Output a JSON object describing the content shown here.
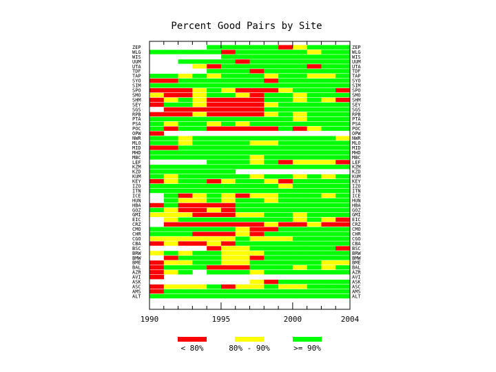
{
  "chart_data": {
    "type": "heatmap",
    "title": "Percent Good Pairs by Site",
    "xlabel": "",
    "ylabel": "",
    "x_ticks": [
      "1990",
      "1995",
      "2000",
      "2004"
    ],
    "x_tick_values": [
      1990,
      1995,
      2000,
      2004
    ],
    "xlim": [
      1990,
      2004
    ],
    "years": [
      1990,
      1991,
      1992,
      1993,
      1994,
      1995,
      1996,
      1997,
      1998,
      1999,
      2000,
      2001,
      2002,
      2003
    ],
    "colors": {
      "low": "#ff0000",
      "mid": "#ffff00",
      "high": "#00ff00",
      "none": "#ffffff"
    },
    "legend": [
      {
        "code": "R",
        "label": "< 80%"
      },
      {
        "code": "Y",
        "label": "80% - 90%"
      },
      {
        "code": "G",
        "label": ">= 90%"
      }
    ],
    "legend_position": "bottom",
    "value_codes": {
      "R": "< 80%",
      "Y": "80% - 90%",
      "G": ">= 90%",
      "-": "no data"
    },
    "sites": [
      "ZEP",
      "WLG",
      "WIS",
      "UUM",
      "UTA",
      "TDF",
      "TAP",
      "SYO",
      "SIM",
      "SPO",
      "SMO",
      "SHM",
      "SEY",
      "SGS",
      "RPB",
      "PTA",
      "PSA",
      "POC",
      "OPW",
      "NWR",
      "MLO",
      "MID",
      "MHD",
      "MBC",
      "LEF",
      "KZM",
      "KZD",
      "KUM",
      "KEY",
      "IZO",
      "ITN",
      "ICE",
      "HUN",
      "HBA",
      "GOZ",
      "GMI",
      "EIC",
      "CRZ",
      "CMO",
      "CHR",
      "CGO",
      "CBA",
      "BSC",
      "BRW",
      "BMW",
      "BME",
      "BAL",
      "AZR",
      "AVI",
      "ASK",
      "ASC",
      "AMS",
      "ALT"
    ],
    "rows": [
      "----GGGGGRYGGG",
      "GGGGGRGGGGGYGG",
      "-----GGGGGGGGG",
      "--GGGGRGGGGGGG",
      "---YRGGGGGGRGG",
      "----GGGRGGGGGG",
      "GGYGYGGGYGGYYG",
      "RRGGGGGGRGGGGG",
      "GGGGGGGGGGGGGG",
      "RRRYGYRRRYGGGR",
      "YRRYGGYRGGYGGG",
      "RYGYRRRRGGYGYR",
      "RGGYRRRRYGGGGG",
      "-RRRRRRRGGGGGG",
      "RRRYRRRRYGYGGG",
      "GGGGGGGGGGYGGG",
      "GYGGYGYGGGGGGG",
      "GRGGRRRRRGRYGG",
      "R-------------",
      "GGYGGGGGGGGGGY",
      "GGYGGGGYYGGGGG",
      "RRGGGGGGGGGGGG",
      "GGGGGGGGGGGGGG",
      "GGGGGGGYGGGGGG",
      "----GGGYGRYYYR",
      "GGGGGGGGGGGGGG",
      "GGGGGG--------",
      "GYGGGGGYGGYGYG",
      "RYGGRYGGYRGGGG",
      "GGGGGGGGGYGGGG",
      "GGGGGGGGGGGGGG",
      "-GRYGYRYYGGGYG",
      "-GYYGYGGYGGGGG",
      "RGRRRRGGGGGGGG",
      "GYRRYRGGGGGGGG",
      "YYYRRRYYGGYGGG",
      "-YGGGGGGGGYGYR",
      "-RRRRRRRYRRYRR",
      "GGGGGGYRRGGGGG",
      "GGGRRRYRGGGGGG",
      "YYYYYYGYYYGGGG",
      "RYRRYRGGGGGGGG",
      "----RYYGGGGGGR",
      "YGYGGYYYGGGGGG",
      "-RGGGYYRGGGGGG",
      "RYYGGYYGGGGGYY",
      "RGGGRRRGGGYGYG",
      "RYG-GGGYGGGGGG",
      "R-------------",
      "-------YRGGGGG",
      "RYYYGRYYGYYGGG",
      "RGGGGGGGGGGGGG",
      "GGGGGGGGGGGGGG"
    ]
  }
}
